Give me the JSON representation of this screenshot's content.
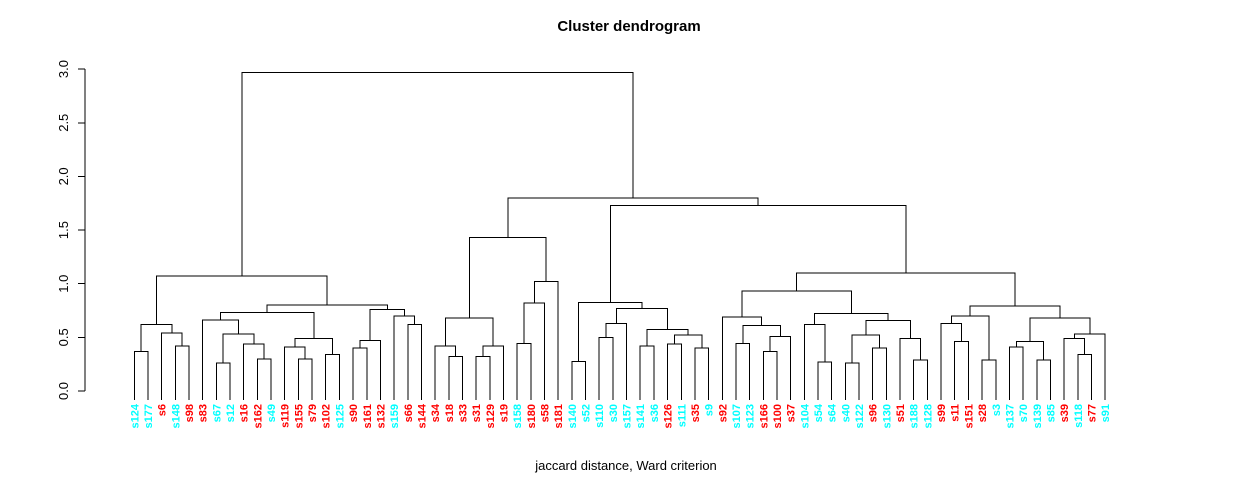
{
  "chart_data": {
    "type": "dendrogram",
    "title": "Cluster dendrogram",
    "xlabel": "jaccard distance, Ward criterion",
    "ylabel": "",
    "y_ticks": [
      "0.0",
      "0.5",
      "1.0",
      "1.5",
      "2.0",
      "2.5",
      "3.0"
    ],
    "y_tick_values": [
      0.0,
      0.5,
      1.0,
      1.5,
      2.0,
      2.5,
      3.0
    ],
    "y_range": [
      0.0,
      3.0
    ],
    "root_height": 2.97,
    "leaf_colors": {
      "cyan": "#00ffff",
      "red": "#ff0000"
    },
    "leaves": [
      {
        "label": "s124",
        "color": "cyan"
      },
      {
        "label": "s177",
        "color": "cyan"
      },
      {
        "label": "s6",
        "color": "red"
      },
      {
        "label": "s148",
        "color": "cyan"
      },
      {
        "label": "s98",
        "color": "red"
      },
      {
        "label": "s83",
        "color": "red"
      },
      {
        "label": "s67",
        "color": "cyan"
      },
      {
        "label": "s12",
        "color": "cyan"
      },
      {
        "label": "s16",
        "color": "red"
      },
      {
        "label": "s162",
        "color": "red"
      },
      {
        "label": "s49",
        "color": "cyan"
      },
      {
        "label": "s119",
        "color": "red"
      },
      {
        "label": "s155",
        "color": "red"
      },
      {
        "label": "s79",
        "color": "red"
      },
      {
        "label": "s102",
        "color": "red"
      },
      {
        "label": "s125",
        "color": "cyan"
      },
      {
        "label": "s90",
        "color": "red"
      },
      {
        "label": "s161",
        "color": "red"
      },
      {
        "label": "s132",
        "color": "red"
      },
      {
        "label": "s159",
        "color": "cyan"
      },
      {
        "label": "s66",
        "color": "red"
      },
      {
        "label": "s144",
        "color": "red"
      },
      {
        "label": "s34",
        "color": "red"
      },
      {
        "label": "s18",
        "color": "red"
      },
      {
        "label": "s33",
        "color": "red"
      },
      {
        "label": "s31",
        "color": "red"
      },
      {
        "label": "s129",
        "color": "red"
      },
      {
        "label": "s19",
        "color": "red"
      },
      {
        "label": "s158",
        "color": "cyan"
      },
      {
        "label": "s180",
        "color": "red"
      },
      {
        "label": "s58",
        "color": "red"
      },
      {
        "label": "s181",
        "color": "red"
      },
      {
        "label": "s140",
        "color": "cyan"
      },
      {
        "label": "s52",
        "color": "cyan"
      },
      {
        "label": "s110",
        "color": "cyan"
      },
      {
        "label": "s30",
        "color": "cyan"
      },
      {
        "label": "s157",
        "color": "cyan"
      },
      {
        "label": "s141",
        "color": "cyan"
      },
      {
        "label": "s36",
        "color": "cyan"
      },
      {
        "label": "s126",
        "color": "red"
      },
      {
        "label": "s111",
        "color": "cyan"
      },
      {
        "label": "s35",
        "color": "red"
      },
      {
        "label": "s9",
        "color": "cyan"
      },
      {
        "label": "s92",
        "color": "red"
      },
      {
        "label": "s107",
        "color": "cyan"
      },
      {
        "label": "s123",
        "color": "cyan"
      },
      {
        "label": "s166",
        "color": "red"
      },
      {
        "label": "s100",
        "color": "red"
      },
      {
        "label": "s37",
        "color": "red"
      },
      {
        "label": "s104",
        "color": "cyan"
      },
      {
        "label": "s54",
        "color": "cyan"
      },
      {
        "label": "s64",
        "color": "cyan"
      },
      {
        "label": "s40",
        "color": "cyan"
      },
      {
        "label": "s122",
        "color": "cyan"
      },
      {
        "label": "s96",
        "color": "red"
      },
      {
        "label": "s130",
        "color": "cyan"
      },
      {
        "label": "s51",
        "color": "red"
      },
      {
        "label": "s188",
        "color": "cyan"
      },
      {
        "label": "s128",
        "color": "cyan"
      },
      {
        "label": "s99",
        "color": "red"
      },
      {
        "label": "s11",
        "color": "red"
      },
      {
        "label": "s151",
        "color": "red"
      },
      {
        "label": "s28",
        "color": "red"
      },
      {
        "label": "s3",
        "color": "cyan"
      },
      {
        "label": "s137",
        "color": "cyan"
      },
      {
        "label": "s70",
        "color": "cyan"
      },
      {
        "label": "s139",
        "color": "cyan"
      },
      {
        "label": "s85",
        "color": "cyan"
      },
      {
        "label": "s39",
        "color": "red"
      },
      {
        "label": "s118",
        "color": "cyan"
      },
      {
        "label": "s77",
        "color": "red"
      },
      {
        "label": "s91",
        "color": "cyan"
      }
    ],
    "merges": [
      2.97,
      [
        1.07,
        [
          0.62,
          [
            0.37,
            0,
            1
          ],
          [
            0.54,
            2,
            [
              0.42,
              3,
              4
            ]
          ]
        ],
        [
          0.8,
          [
            0.73,
            [
              0.66,
              5,
              [
                0.53,
                [
                  0.26,
                  6,
                  7
                ],
                [
                  0.44,
                  8,
                  [
                    0.3,
                    9,
                    10
                  ]
                ]
              ]
            ],
            [
              0.49,
              [
                0.41,
                11,
                [
                  0.3,
                  12,
                  13
                ]
              ],
              [
                0.34,
                14,
                15
              ]
            ]
          ],
          [
            0.76,
            [
              0.47,
              [
                0.4,
                16,
                17
              ],
              18
            ],
            [
              0.7,
              19,
              [
                0.62,
                20,
                21
              ]
            ]
          ]
        ]
      ],
      [
        1.8,
        [
          1.43,
          [
            0.68,
            [
              0.42,
              22,
              [
                0.32,
                23,
                24
              ]
            ],
            [
              0.42,
              [
                0.32,
                25,
                26
              ],
              27
            ]
          ],
          [
            1.02,
            [
              0.82,
              [
                0.445,
                28,
                29
              ],
              30
            ],
            31
          ]
        ],
        [
          1.73,
          [
            0.824,
            [
              0.273,
              32,
              33
            ],
            [
              0.771,
              [
                0.63,
                [
                  0.5,
                  34,
                  35
                ],
                36
              ],
              [
                0.575,
                [
                  0.42,
                  37,
                  38
                ],
                [
                  0.52,
                  [
                    0.44,
                    39,
                    40
                  ],
                  [
                    0.4,
                    41,
                    42
                  ]
                ]
              ]
            ]
          ],
          [
            1.1,
            [
              0.93,
              [
                0.69,
                43,
                [
                  0.61,
                  [
                    0.445,
                    44,
                    45
                  ],
                  [
                    0.506,
                    [
                      0.37,
                      46,
                      47
                    ],
                    48
                  ]
                ]
              ],
              [
                0.72,
                [
                  0.62,
                  49,
                  [
                    0.27,
                    50,
                    51
                  ]
                ],
                [
                  0.655,
                  [
                    0.52,
                    [
                      0.26,
                      52,
                      53
                    ],
                    [
                      0.4,
                      54,
                      55
                    ]
                  ],
                  [
                    0.49,
                    56,
                    [
                      0.29,
                      57,
                      58
                    ]
                  ]
                ]
              ]
            ],
            [
              0.79,
              [
                0.7,
                [
                  0.63,
                  59,
                  [
                    0.46,
                    60,
                    61
                  ]
                ],
                [
                  0.29,
                  62,
                  63
                ]
              ],
              [
                0.68,
                [
                  0.46,
                  [
                    0.41,
                    64,
                    65
                  ],
                  [
                    0.29,
                    66,
                    67
                  ]
                ],
                [
                  0.53,
                  [
                    0.49,
                    68,
                    [
                      0.34,
                      69,
                      70
                    ]
                  ],
                  71
                ]
              ]
            ]
          ]
        ]
      ]
    ]
  }
}
